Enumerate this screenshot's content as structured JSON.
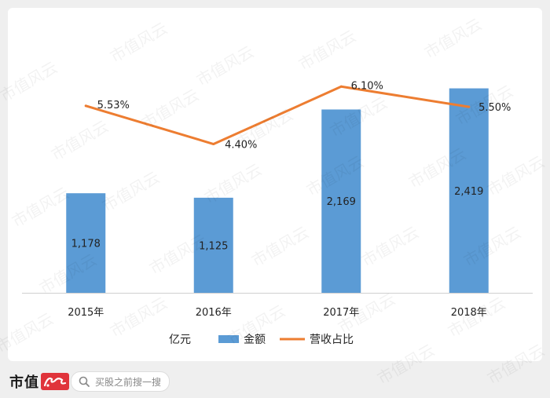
{
  "chart_data": {
    "type": "bar",
    "categories": [
      "2015年",
      "2016年",
      "2017年",
      "2018年"
    ],
    "series": [
      {
        "name": "金额",
        "type": "bar",
        "values": [
          1178,
          1125,
          2169,
          2419
        ],
        "labels": [
          "1,178",
          "1,125",
          "2,169",
          "2,419"
        ],
        "color": "#5b9bd5"
      },
      {
        "name": "营收占比",
        "type": "line",
        "values": [
          5.53,
          4.4,
          6.1,
          5.5
        ],
        "labels": [
          "5.53%",
          "4.40%",
          "6.10%",
          "5.50%"
        ],
        "color": "#ed7d31"
      }
    ],
    "unit_label": "亿元",
    "y_bar_range": [
      0,
      3000
    ],
    "y_line_range": [
      0,
      7.5
    ],
    "grid": false,
    "legend_position": "bottom"
  },
  "watermark_text": "市值风云",
  "footer": {
    "brand": "市值",
    "search_placeholder": "买股之前搜一搜"
  },
  "colors": {
    "bar": "#5b9bd5",
    "line": "#ed7d31",
    "background": "#efefef"
  }
}
